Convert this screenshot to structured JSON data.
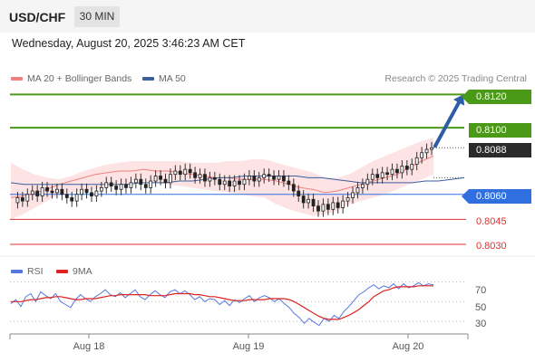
{
  "header": {
    "pair": "USD/CHF",
    "timeframe": "30 MIN"
  },
  "datetime": "Wednesday, August 20, 2025 3:46:23 AM CET",
  "legend": [
    {
      "label": "MA 20 + Bollinger Bands",
      "color": "#f08080"
    },
    {
      "label": "MA 50",
      "color": "#3a5fa0"
    }
  ],
  "credit": "Research © 2025 Trading Central",
  "levels": [
    {
      "value": "0.8120",
      "kind": "target",
      "color": "#4a9a17"
    },
    {
      "value": "0.8100",
      "kind": "target",
      "color": "#4a9a17"
    },
    {
      "value": "0.8088",
      "kind": "current",
      "color": "#2b2b2b"
    },
    {
      "value": "0.8060",
      "kind": "pivot",
      "color": "#2f6fe0"
    },
    {
      "value": "0.8045",
      "kind": "support",
      "color": "#e03030"
    },
    {
      "value": "0.8030",
      "kind": "support",
      "color": "#e03030"
    }
  ],
  "rsi": {
    "legend": [
      {
        "label": "RSI",
        "color": "#5577dd"
      },
      {
        "label": "9MA",
        "color": "#dd2222"
      }
    ],
    "ticks": [
      "70",
      "50",
      "30"
    ]
  },
  "x_axis": [
    "Aug 18",
    "Aug 19",
    "Aug 20"
  ],
  "chart_data": {
    "type": "candlestick",
    "price_range": [
      0.8024,
      0.8124
    ],
    "rsi_range": [
      20,
      75
    ],
    "ma20": [
      0.8058,
      0.8059,
      0.8061,
      0.8063,
      0.8066,
      0.8068,
      0.807,
      0.8072,
      0.8073,
      0.8074,
      0.8074,
      0.8075,
      0.8074,
      0.8074,
      0.8073,
      0.8072,
      0.8071,
      0.807,
      0.807,
      0.8069,
      0.8069,
      0.8069,
      0.8068,
      0.8066,
      0.8064,
      0.8063,
      0.8061,
      0.8062,
      0.8064,
      0.8066,
      0.8068,
      0.807,
      0.8072,
      0.8076,
      0.808,
      0.8083
    ],
    "ma50": [
      0.8067,
      0.8066,
      0.8066,
      0.8066,
      0.8066,
      0.8066,
      0.8066,
      0.8066,
      0.8066,
      0.8066,
      0.8067,
      0.8067,
      0.8067,
      0.8068,
      0.8068,
      0.8069,
      0.807,
      0.807,
      0.8071,
      0.8071,
      0.8071,
      0.8071,
      0.8071,
      0.807,
      0.807,
      0.8069,
      0.8068,
      0.8067,
      0.8067,
      0.8067,
      0.8067,
      0.8067,
      0.8068,
      0.8068,
      0.8069,
      0.807
    ],
    "bb_upper": [
      0.8079,
      0.8075,
      0.8072,
      0.807,
      0.8069,
      0.8071,
      0.8074,
      0.8076,
      0.8078,
      0.8079,
      0.808,
      0.808,
      0.808,
      0.808,
      0.808,
      0.8079,
      0.8079,
      0.8079,
      0.808,
      0.808,
      0.8081,
      0.8081,
      0.8079,
      0.8077,
      0.8075,
      0.8073,
      0.807,
      0.807,
      0.8072,
      0.8076,
      0.808,
      0.8083,
      0.8086,
      0.8089,
      0.8092,
      0.8094
    ],
    "bb_lower": [
      0.8045,
      0.8048,
      0.8052,
      0.8056,
      0.806,
      0.8061,
      0.8062,
      0.8063,
      0.8064,
      0.8066,
      0.8067,
      0.8068,
      0.8067,
      0.8066,
      0.8065,
      0.8064,
      0.8063,
      0.8062,
      0.8061,
      0.806,
      0.8059,
      0.8058,
      0.8054,
      0.8051,
      0.8049,
      0.8047,
      0.8048,
      0.805,
      0.8054,
      0.8056,
      0.8058,
      0.806,
      0.8063,
      0.8066,
      0.8069,
      0.8072
    ],
    "closes": [
      0.8055,
      0.8058,
      0.8056,
      0.806,
      0.8062,
      0.8059,
      0.8064,
      0.8062,
      0.8061,
      0.8063,
      0.806,
      0.8058,
      0.8056,
      0.806,
      0.8063,
      0.8061,
      0.8059,
      0.8062,
      0.8064,
      0.8067,
      0.8065,
      0.8063,
      0.8066,
      0.8064,
      0.8067,
      0.8069,
      0.8066,
      0.8064,
      0.8068,
      0.8071,
      0.8069,
      0.8067,
      0.8072,
      0.8074,
      0.8072,
      0.8075,
      0.8073,
      0.807,
      0.8072,
      0.8068,
      0.807,
      0.8069,
      0.8066,
      0.8068,
      0.8065,
      0.8068,
      0.8066,
      0.8069,
      0.8071,
      0.8068,
      0.807,
      0.8072,
      0.8071,
      0.8069,
      0.8071,
      0.8068,
      0.8066,
      0.8062,
      0.8059,
      0.8055,
      0.8057,
      0.8053,
      0.805,
      0.8054,
      0.8051,
      0.8055,
      0.8052,
      0.8056,
      0.8058,
      0.8061,
      0.8064,
      0.8066,
      0.8069,
      0.8072,
      0.807,
      0.8073,
      0.8072,
      0.8075,
      0.8073,
      0.8077,
      0.8075,
      0.8078,
      0.8082,
      0.8085,
      0.8087,
      0.8088
    ],
    "rsi_values": [
      48,
      52,
      45,
      55,
      58,
      50,
      60,
      56,
      53,
      58,
      50,
      47,
      44,
      52,
      57,
      53,
      50,
      55,
      58,
      62,
      57,
      55,
      59,
      54,
      58,
      62,
      55,
      52,
      57,
      61,
      57,
      54,
      60,
      62,
      58,
      61,
      57,
      52,
      55,
      50,
      53,
      52,
      47,
      51,
      46,
      52,
      49,
      53,
      56,
      50,
      54,
      56,
      54,
      50,
      53,
      48,
      44,
      38,
      34,
      28,
      33,
      29,
      26,
      33,
      30,
      36,
      33,
      40,
      45,
      51,
      57,
      60,
      64,
      67,
      63,
      66,
      64,
      68,
      63,
      68,
      64,
      66,
      69,
      66,
      68,
      67
    ],
    "rsi_ma": [
      50,
      50,
      50,
      51,
      52,
      52,
      53,
      54,
      54,
      55,
      55,
      54,
      53,
      52,
      52,
      53,
      53,
      53,
      54,
      55,
      56,
      56,
      57,
      57,
      57,
      57,
      57,
      57,
      56,
      56,
      56,
      56,
      57,
      58,
      58,
      58,
      58,
      57,
      57,
      56,
      55,
      55,
      54,
      53,
      52,
      51,
      51,
      51,
      52,
      52,
      52,
      52,
      53,
      53,
      53,
      53,
      52,
      50,
      47,
      44,
      41,
      38,
      35,
      33,
      32,
      32,
      32,
      34,
      36,
      39,
      42,
      46,
      50,
      55,
      58,
      61,
      62,
      64,
      65,
      65,
      65,
      65,
      66,
      66,
      66,
      66
    ]
  }
}
